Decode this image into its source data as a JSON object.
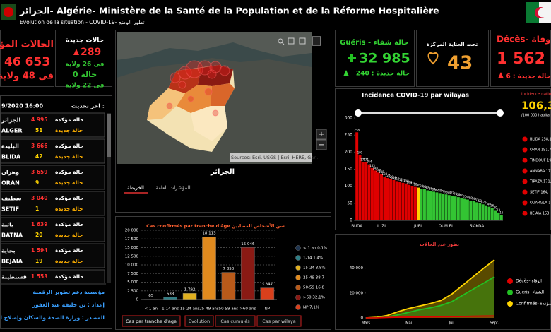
{
  "header": {
    "title": "الجزائر- Algérie- Ministère de la Santé de la Population et de la Réforme Hospitalière",
    "subtitle": "Evolution de la situation - COVID-19- تطور الوضع"
  },
  "summary": {
    "confirmed_label": "الحالات المؤكدة",
    "confirmed": "46 653",
    "confirmed_wilayas": "فى 48 ولاية",
    "new_label": "حالات جديدة",
    "new": "289",
    "new_wilayas": "فى 26 ولاية",
    "zero": "0 حالة",
    "zero_wilayas": "فى 22 ولاية"
  },
  "update": {
    "label": "اخر تحديث :",
    "value": "9/2020 16:00"
  },
  "wilayas": [
    {
      "name_ar": "الجزائر",
      "name": "ALGER",
      "confirmed": "4 995",
      "confirmed_label": "حالة مؤكدة",
      "new": "51",
      "new_label": "حالة جديدة"
    },
    {
      "name_ar": "البليدة",
      "name": "BLIDA",
      "confirmed": "3 666",
      "confirmed_label": "حالة مؤكدة",
      "new": "42",
      "new_label": "حالة جديدة"
    },
    {
      "name_ar": "وهران",
      "name": "ORAN",
      "confirmed": "3 659",
      "confirmed_label": "حالة مؤكدة",
      "new": "9",
      "new_label": "حالة جديدة"
    },
    {
      "name_ar": "سطيف",
      "name": "SETIF",
      "confirmed": "3 040",
      "confirmed_label": "حالة مؤكدة",
      "new": "1",
      "new_label": "حالة جديدة"
    },
    {
      "name_ar": "باتنة",
      "name": "BATNA",
      "confirmed": "1 639",
      "confirmed_label": "حالة مؤكدة",
      "new": "20",
      "new_label": "حالة جديدة"
    },
    {
      "name_ar": "بجاية",
      "name": "BEJAIA",
      "confirmed": "1 594",
      "confirmed_label": "حالة مؤكدة",
      "new": "19",
      "new_label": "حالة جديدة"
    },
    {
      "name_ar": "قسنطينة",
      "confirmed": "1 553",
      "confirmed_label": "حالة مؤكدة"
    }
  ],
  "footer": [
    "مؤسسة دعم تطوير الرقمنة",
    "إعداد : بن خليفة عبد الغفور",
    "المصدر : وزارة الصحة والسكان وإصلاح المستشفيات"
  ],
  "map": {
    "title": "الجزائر",
    "tabs": [
      "الخريطة",
      "المؤشرات العامة"
    ],
    "attribution": "Sources: Esri, USGS | Esri, HERE, Gar..."
  },
  "stats": {
    "recovered_label": "Guéris - حالة شفاء",
    "recovered": "32 985",
    "recovered_new": "حالة جديدة : 240",
    "icu_label": "تحت العناية المركزة",
    "icu": "43",
    "deaths_label": "Décès- وفاة",
    "deaths": "1 562",
    "deaths_new": "حالة جديدة : 6"
  },
  "incidence_summary": {
    "label": "Incidence nationale",
    "value": "106,3",
    "unit": "/100 000 habitants",
    "items": [
      "BLIDA 258,1",
      "ORAN 191,7",
      "TINDOUF 19",
      "ANNABA 171,",
      "TIPAZA 171,",
      "SETIF 164,",
      "OUARGLA 1",
      "BEJAIA 153"
    ]
  },
  "chart_data": [
    {
      "type": "bar",
      "title": "Cas confirmés par tranche d'âge سن الأشخاص المصابين",
      "categories": [
        "< 1 an",
        "1-14 ans",
        "15-24 ans",
        "25-49 ans",
        "50-59 ans",
        ">60 ans",
        "NP"
      ],
      "values": [
        65,
        633,
        1792,
        18113,
        7850,
        15046,
        3347
      ],
      "value_labels": [
        "65",
        "633",
        "1 792",
        "18 113",
        "7 850",
        "15 046",
        "3 347"
      ],
      "colors": [
        "#1f3550",
        "#2f7f86",
        "#e0b020",
        "#e08a1e",
        "#b85a1a",
        "#8a1a14",
        "#d8401c"
      ],
      "ylim": [
        0,
        20000
      ],
      "yticks": [
        0,
        {
          "value": 2500,
          "label": "2 500"
        },
        {
          "value": 5000,
          "label": "5 000"
        },
        {
          "value": 7500,
          "label": "7 500"
        },
        {
          "value": 10000,
          "label": "10 000"
        },
        {
          "value": 12500,
          "label": "12 500"
        },
        {
          "value": 15000,
          "label": "15 000"
        },
        {
          "value": 17500,
          "label": "17 500"
        },
        {
          "value": 20000,
          "label": "20 000"
        }
      ],
      "grid": true,
      "legend": [
        "< 1 an 0,1%",
        "1-14 1,4%",
        "15-24 3,8%",
        "25-49 38,7",
        "50-59 16,8",
        ">60 32,1%",
        "NP 7,1%"
      ],
      "tabs": [
        "Cas par tranche d'age",
        "Evolution",
        "Cas cumulés",
        "Cas par wilaya"
      ]
    },
    {
      "type": "bar",
      "title": "Incidence COVID-19 par wilayas",
      "categories": [
        "BUDA",
        null,
        null,
        null,
        null,
        null,
        null,
        null,
        "ILIZI",
        null,
        null,
        null,
        null,
        null,
        null,
        null,
        null,
        null,
        null,
        null,
        "JUEL",
        null,
        null,
        null,
        null,
        null,
        null,
        null,
        null,
        "OUM EL",
        null,
        null,
        null,
        null,
        null,
        null,
        null,
        null,
        null,
        "SKIKDA",
        null,
        null,
        null,
        null,
        null,
        null,
        null,
        null
      ],
      "values": [
        258,
        191,
        171,
        171,
        164,
        153,
        146,
        140,
        135,
        128,
        124,
        120,
        118,
        115,
        112,
        110,
        108,
        104,
        101,
        98,
        96,
        93,
        91,
        88,
        86,
        84,
        82,
        80,
        78,
        76,
        74,
        72,
        70,
        68,
        66,
        63,
        61,
        58,
        56,
        53,
        50,
        47,
        44,
        40,
        36,
        30,
        23,
        16
      ],
      "colors": [
        "#e00000",
        "#e00000",
        "#e00000",
        "#e00000",
        "#e00000",
        "#e00000",
        "#e00000",
        "#e00000",
        "#e00000",
        "#e00000",
        "#e00000",
        "#e00000",
        "#e00000",
        "#e00000",
        "#e00000",
        "#e00000",
        "#e00000",
        "#e00000",
        "#e00000",
        "#e00000",
        "#ffd400",
        "#33c433",
        "#33c433",
        "#33c433",
        "#33c433",
        "#33c433",
        "#33c433",
        "#33c433",
        "#33c433",
        "#33c433",
        "#33c433",
        "#33c433",
        "#33c433",
        "#33c433",
        "#33c433",
        "#33c433",
        "#33c433",
        "#33c433",
        "#33c433",
        "#33c433",
        "#33c433",
        "#33c433",
        "#33c433",
        "#33c433",
        "#33c433",
        "#33c433",
        "#33c433",
        "#33c433"
      ],
      "ylim": [
        0,
        300
      ],
      "yticks": [
        0,
        50,
        100,
        150,
        200,
        250,
        300
      ]
    },
    {
      "type": "line",
      "title": "تطور عدد الحالات",
      "categories": [
        "Mars",
        null,
        null,
        null,
        "Mai",
        null,
        null,
        null,
        "Juil",
        null,
        null,
        null,
        "Sept."
      ],
      "series": [
        {
          "name": "Décès- الوفاة",
          "color": "#e00000",
          "values": [
            0,
            50,
            400,
            550,
            650,
            750,
            850,
            950,
            1050,
            1150,
            1300,
            1450,
            1562
          ]
        },
        {
          "name": "Guéris- الشفاء",
          "color": "#22c022",
          "values": [
            0,
            100,
            700,
            2500,
            4500,
            6500,
            8000,
            10000,
            13000,
            18000,
            23000,
            28000,
            32985
          ]
        },
        {
          "name": "Confirmés- المؤكدة",
          "color": "#ffd400",
          "values": [
            0,
            500,
            2000,
            5000,
            7500,
            9500,
            11500,
            14000,
            19000,
            26000,
            33000,
            40000,
            46653
          ]
        }
      ],
      "ylim": [
        0,
        50000
      ],
      "yticks": [
        0,
        {
          "value": 20000,
          "label": "20 000"
        },
        {
          "value": 40000,
          "label": "40 000"
        }
      ]
    }
  ]
}
